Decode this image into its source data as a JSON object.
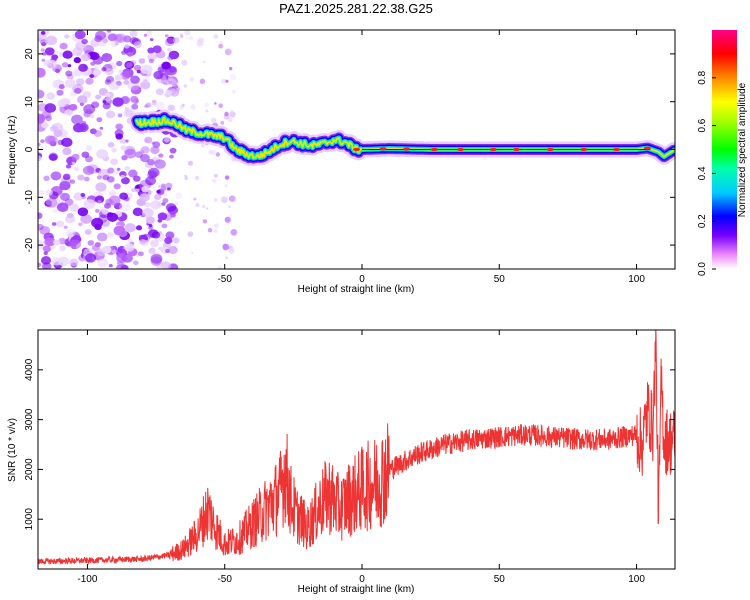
{
  "title": "PAZ1.2025.281.22.38.G25",
  "chart_data": [
    {
      "type": "heatmap",
      "title": "PAZ1.2025.281.22.38.G25",
      "xlabel": "Height of straight line (km)",
      "ylabel": "Frequency (Hz)",
      "xlim": [
        -118,
        114
      ],
      "ylim": [
        -25,
        25
      ],
      "xticks": [
        -100,
        -50,
        0,
        50,
        100
      ],
      "yticks": [
        -20,
        -10,
        0,
        10,
        20
      ],
      "grid": false,
      "ridge_x": [
        -82,
        -76,
        -72,
        -68,
        -64,
        -60,
        -55,
        -50,
        -46,
        -42,
        -38,
        -34,
        -30,
        -26,
        -22,
        -18,
        -14,
        -10,
        -6,
        -2,
        0,
        10,
        25,
        50,
        75,
        100,
        104,
        108,
        110,
        114
      ],
      "ridge_y": [
        5.5,
        5.8,
        6.0,
        5.5,
        4.0,
        3.5,
        3.0,
        2.5,
        0.0,
        -1.0,
        -1.5,
        -0.5,
        1.0,
        1.8,
        1.2,
        0.8,
        1.2,
        2.0,
        1.5,
        0.0,
        0.0,
        0.2,
        0.0,
        0.0,
        0.0,
        0.0,
        0.3,
        -0.5,
        -1.5,
        0.0
      ],
      "colorbar": {
        "label": "Normalized spectral amplitude",
        "ticks": [
          0.0,
          0.2,
          0.4,
          0.6,
          0.8
        ],
        "range": [
          0,
          1
        ]
      }
    },
    {
      "type": "line",
      "xlabel": "Height of straight line (km)",
      "ylabel": "SNR (10 * v/v)",
      "xlim": [
        -118,
        114
      ],
      "ylim": [
        0,
        4800
      ],
      "xticks": [
        -100,
        -50,
        0,
        50,
        100
      ],
      "yticks": [
        1000,
        2000,
        3000,
        4000
      ],
      "grid": false,
      "color": "#ee3333",
      "series": [
        {
          "name": "SNR",
          "x": [
            -118,
            -100,
            -80,
            -70,
            -65,
            -60,
            -56,
            -54,
            -50,
            -45,
            -40,
            -35,
            -30,
            -28,
            -26,
            -24,
            -22,
            -20,
            -15,
            -12,
            -8,
            -5,
            0,
            5,
            10,
            20,
            30,
            40,
            50,
            60,
            70,
            80,
            90,
            95,
            100,
            102,
            104,
            106,
            107,
            108,
            109,
            110,
            112,
            114
          ],
          "y": [
            150,
            170,
            200,
            280,
            400,
            700,
            1200,
            900,
            500,
            600,
            900,
            1200,
            1500,
            2000,
            1400,
            1100,
            1000,
            800,
            1300,
            1500,
            1200,
            1400,
            1600,
            1750,
            2000,
            2300,
            2500,
            2600,
            2650,
            2700,
            2650,
            2600,
            2600,
            2650,
            2700,
            2500,
            3200,
            2800,
            4600,
            1000,
            3800,
            2600,
            2550,
            2600
          ]
        }
      ]
    }
  ]
}
